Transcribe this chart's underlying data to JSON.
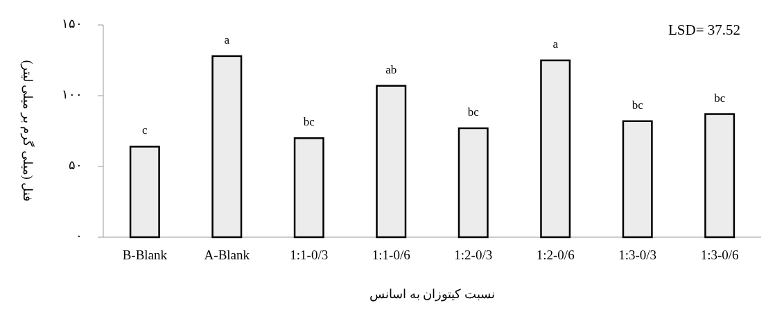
{
  "chart_data": {
    "type": "bar",
    "xlabel": "نسبت کیتوزان به اسانس",
    "ylabel": "فنل (میلی گرم بر میلی لیتر)",
    "categories": [
      "B-Blank",
      "A-Blank",
      "1:1-0/3",
      "1:1-0/6",
      "1:2-0/3",
      "1:2-0/6",
      "1:3-0/3",
      "1:3-0/6"
    ],
    "values": [
      64,
      128,
      70,
      107,
      77,
      125,
      82,
      87
    ],
    "color": "#ececec",
    "ylim": [
      0,
      150
    ],
    "yticks": [
      {
        "value": 0,
        "label": "۰"
      },
      {
        "value": 50,
        "label": "۵۰"
      },
      {
        "value": 100,
        "label": "۱۰۰"
      },
      {
        "value": 150,
        "label": "۱۵۰"
      }
    ],
    "annotations": [
      {
        "text": "c",
        "x": "B-Blank",
        "y": 64
      },
      {
        "text": "a",
        "x": "A-Blank",
        "y": 128
      },
      {
        "text": "bc",
        "x": "1:1-0/3",
        "y": 70
      },
      {
        "text": "ab",
        "x": "1:1-0/6",
        "y": 107
      },
      {
        "text": "bc",
        "x": "1:2-0/3",
        "y": 77
      },
      {
        "text": "a",
        "x": "1:2-0/6",
        "y": 125
      },
      {
        "text": "bc",
        "x": "1:3-0/3",
        "y": 82
      },
      {
        "text": "bc",
        "x": "1:3-0/6",
        "y": 87
      },
      "LSD= 37.52"
    ]
  }
}
